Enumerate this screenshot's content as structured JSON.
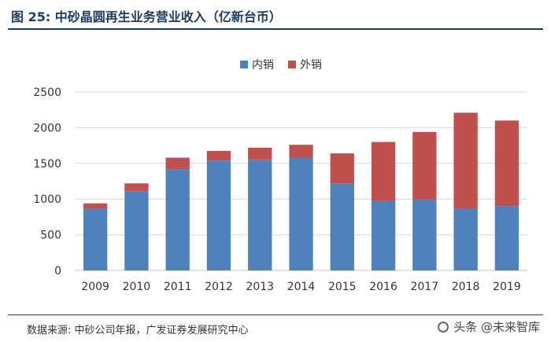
{
  "header": {
    "title": "图 25: 中砂晶圆再生业务营业收入（亿新台币）"
  },
  "colors": {
    "domestic": "#4f81bd",
    "export": "#c0504d",
    "grid": "#d9d9d9",
    "axis": "#333333"
  },
  "chart_data": {
    "type": "bar",
    "stacked": true,
    "title": "中砂晶圆再生业务营业收入（亿新台币）",
    "categories": [
      "2009",
      "2010",
      "2011",
      "2012",
      "2013",
      "2014",
      "2015",
      "2016",
      "2017",
      "2018",
      "2019"
    ],
    "series": [
      {
        "name": "内销",
        "values": [
          860,
          1110,
          1420,
          1540,
          1550,
          1580,
          1220,
          970,
          990,
          870,
          900
        ]
      },
      {
        "name": "外销",
        "values": [
          80,
          110,
          160,
          135,
          170,
          180,
          420,
          830,
          950,
          1340,
          1200
        ]
      }
    ],
    "ylim": [
      0,
      2500
    ],
    "yticks": [
      0,
      500,
      1000,
      1500,
      2000,
      2500
    ],
    "xlabel": "",
    "ylabel": "",
    "legend": "top-center",
    "grid": true
  },
  "footer": {
    "source": "数据来源: 中砂公司年报，广发证券发展研究中心",
    "watermark": "头条 @未来智库"
  }
}
